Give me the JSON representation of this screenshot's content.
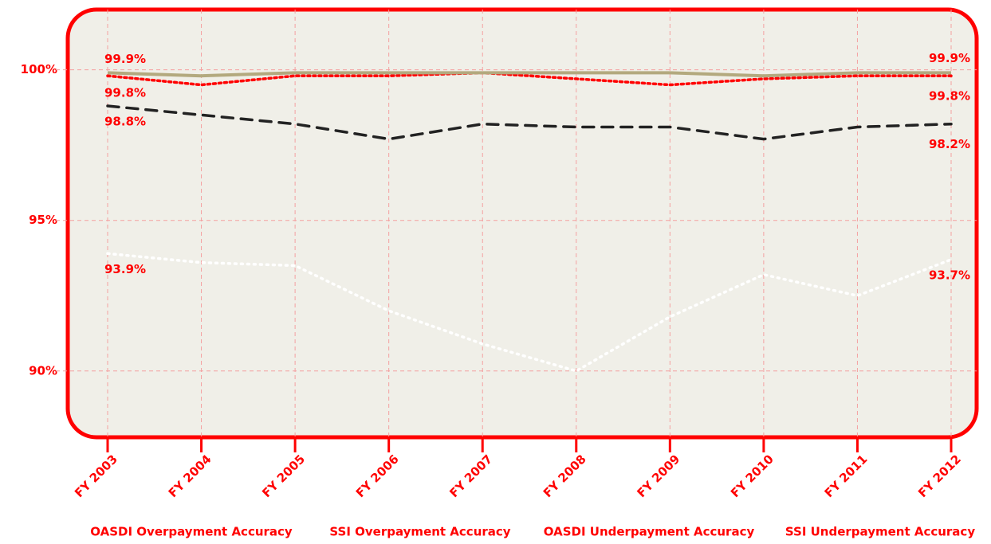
{
  "chart_data": {
    "type": "line",
    "categories": [
      "FY 2003",
      "FY 2004",
      "FY 2005",
      "FY 2006",
      "FY 2007",
      "FY 2008",
      "FY 2009",
      "FY 2010",
      "FY 2011",
      "FY 2012"
    ],
    "series": [
      {
        "name": "OASDI Overpayment Accuracy",
        "color": "#ff0000",
        "dash": "3,4",
        "values": [
          99.8,
          99.5,
          99.8,
          99.8,
          99.9,
          99.7,
          99.5,
          99.7,
          99.8,
          99.8
        ],
        "value_labels": [
          "99.8%",
          null,
          null,
          null,
          null,
          null,
          null,
          null,
          null,
          "99.8%"
        ]
      },
      {
        "name": "SSI Overpayment Accuracy",
        "color": "#ffffff",
        "dash": "2,6",
        "values": [
          93.9,
          93.6,
          93.5,
          92.0,
          90.9,
          90.0,
          91.8,
          93.2,
          92.5,
          93.7
        ],
        "value_labels": [
          "93.9%",
          null,
          null,
          null,
          null,
          null,
          null,
          null,
          null,
          "93.7%"
        ]
      },
      {
        "name": "OASDI Underpayment Accuracy",
        "color": "#b3a97e",
        "dash": "none",
        "values": [
          99.9,
          99.8,
          99.9,
          99.9,
          99.9,
          99.9,
          99.9,
          99.8,
          99.9,
          99.9
        ],
        "value_labels": [
          "99.9%",
          null,
          null,
          null,
          null,
          null,
          null,
          null,
          null,
          "99.9%"
        ]
      },
      {
        "name": "SSI Underpayment Accuracy",
        "color": "#222222",
        "dash": "14,10",
        "values": [
          98.8,
          98.5,
          98.2,
          97.7,
          98.2,
          98.1,
          98.1,
          97.7,
          98.1,
          98.2
        ],
        "value_labels": [
          "98.8%",
          null,
          null,
          null,
          null,
          null,
          null,
          null,
          null,
          "98.2%"
        ]
      }
    ],
    "ylim": [
      87.8,
      102
    ],
    "yticks": [
      {
        "value": 90,
        "label": "90%"
      },
      {
        "value": 95,
        "label": "95%"
      },
      {
        "value": 100,
        "label": "100%"
      }
    ],
    "grid": true,
    "legend": "bottom"
  }
}
